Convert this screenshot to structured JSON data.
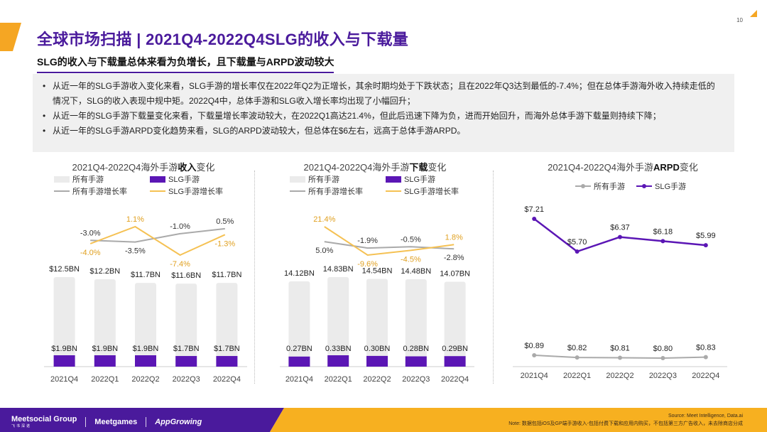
{
  "page": {
    "number": "10",
    "title": "全球市场扫描 | 2021Q4-2022Q4SLG的收入与下载量",
    "subtitle": "SLG的收入与下载量总体来看为负增长，且下载量与ARPD波动较大",
    "colors": {
      "brand": "#4a1a9c",
      "accent": "#f5a623",
      "footer": "#f7b020",
      "light_bar": "#ebebeb",
      "purple": "#5b16b5",
      "gray_line": "#aaaaaa",
      "yellow_line": "#f5c153"
    }
  },
  "bullets": [
    "从近一年的SLG手游收入变化来看，SLG手游的增长率仅在2022年Q2为正增长，其余时期均处于下跌状态；且在2022年Q3达到最低的-7.4%；但在总体手游海外收入持续走低的情况下，SLG的收入表现中规中矩。2022Q4中，总体手游和SLG收入增长率均出现了小幅回升；",
    "从近一年的SLG手游下载量变化来看，下载量增长率波动较大，在2022Q1高达21.4%，但此后迅速下降为负，进而开始回升，而海外总体手游下载量则持续下降；",
    "从近一年的SLG手游ARPD变化趋势来看，SLG的ARPD波动较大，但总体在$6左右，远高于总体手游ARPD。"
  ],
  "chart_data": [
    {
      "type": "bar",
      "title_prefix": "2021Q4-2022Q4海外手游",
      "title_bold": "收入",
      "title_suffix": "变化",
      "legend": [
        "所有手游",
        "SLG手游",
        "所有手游增长率",
        "SLG手游增长率"
      ],
      "categories": [
        "2021Q4",
        "2022Q1",
        "2022Q2",
        "2022Q3",
        "2022Q4"
      ],
      "series": [
        {
          "name": "所有手游",
          "values": [
            12.5,
            12.2,
            11.7,
            11.6,
            11.7
          ],
          "labels": [
            "$12.5BN",
            "$12.2BN",
            "$11.7BN",
            "$11.6BN",
            "$11.7BN"
          ]
        },
        {
          "name": "SLG手游",
          "values": [
            1.9,
            1.9,
            1.9,
            1.7,
            1.7
          ],
          "labels": [
            "$1.9BN",
            "$1.9BN",
            "$1.9BN",
            "$1.7BN",
            "$1.7BN"
          ]
        },
        {
          "name": "所有手游增长率",
          "values": [
            null,
            -3.0,
            -3.5,
            -1.0,
            0.5
          ],
          "labels": [
            "",
            "-3.0%",
            "-3.5%",
            "-1.0%",
            "0.5%"
          ]
        },
        {
          "name": "SLG手游增长率",
          "values": [
            null,
            -4.0,
            1.1,
            -7.4,
            -1.3
          ],
          "labels": [
            "",
            "-4.0%",
            "1.1%",
            "-7.4%",
            "-1.3%"
          ]
        }
      ]
    },
    {
      "type": "bar",
      "title_prefix": "2021Q4-2022Q4海外手游",
      "title_bold": "下载",
      "title_suffix": "变化",
      "legend": [
        "所有手游",
        "SLG手游",
        "所有手游增长率",
        "SLG手游增长率"
      ],
      "categories": [
        "2021Q4",
        "2022Q1",
        "2022Q2",
        "2022Q3",
        "2022Q4"
      ],
      "series": [
        {
          "name": "所有手游",
          "values": [
            14.12,
            14.83,
            14.54,
            14.48,
            14.07
          ],
          "labels": [
            "14.12BN",
            "14.83BN",
            "14.54BN",
            "14.48BN",
            "14.07BN"
          ]
        },
        {
          "name": "SLG手游",
          "values": [
            0.27,
            0.33,
            0.3,
            0.28,
            0.29
          ],
          "labels": [
            "0.27BN",
            "0.33BN",
            "0.30BN",
            "0.28BN",
            "0.29BN"
          ]
        },
        {
          "name": "所有手游增长率",
          "values": [
            null,
            5.0,
            -1.9,
            -0.5,
            -2.8
          ],
          "labels": [
            "",
            "5.0%",
            "-1.9%",
            "-0.5%",
            "-2.8%"
          ]
        },
        {
          "name": "SLG手游增长率",
          "values": [
            null,
            21.4,
            -9.6,
            -4.5,
            1.8
          ],
          "labels": [
            "",
            "21.4%",
            "-9.6%",
            "-4.5%",
            "1.8%"
          ]
        }
      ]
    },
    {
      "type": "line",
      "title_prefix": "2021Q4-2022Q4海外手游",
      "title_bold": "ARPD",
      "title_suffix": "变化",
      "legend": [
        "所有手游",
        "SLG手游"
      ],
      "categories": [
        "2021Q4",
        "2022Q1",
        "2022Q2",
        "2022Q3",
        "2022Q4"
      ],
      "series": [
        {
          "name": "所有手游",
          "values": [
            0.89,
            0.82,
            0.81,
            0.8,
            0.83
          ],
          "labels": [
            "$0.89",
            "$0.82",
            "$0.81",
            "$0.80",
            "$0.83"
          ]
        },
        {
          "name": "SLG手游",
          "values": [
            7.21,
            5.7,
            6.37,
            6.18,
            5.99
          ],
          "labels": [
            "$7.21",
            "$5.70",
            "$6.37",
            "$6.18",
            "$5.99"
          ]
        }
      ]
    }
  ],
  "footer": {
    "logos": [
      "Meetsocial Group",
      "飞书深诺",
      "Meetgames",
      "AppGrowing"
    ],
    "source": "Source:  Meet Intelligence, Data.ai",
    "note": "Note: 数据包括iOS及GP端手游收入-包括付费下载和应用内购买，不包括第三方广告收入，未去除商店分成"
  }
}
